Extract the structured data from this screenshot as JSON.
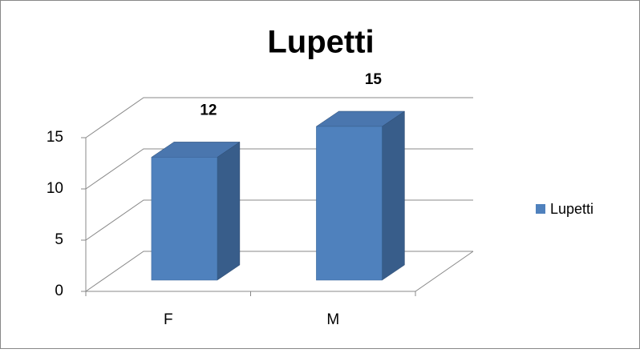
{
  "chart_data": {
    "type": "bar3d",
    "title": "Lupetti",
    "categories": [
      "F",
      "M"
    ],
    "series": [
      {
        "name": "Lupetti",
        "color": "#4f81bd",
        "values": [
          12,
          15
        ]
      }
    ],
    "ylim": [
      0,
      15
    ],
    "yticks": [
      0,
      5,
      10,
      15
    ],
    "grid": true,
    "legend": "right"
  }
}
